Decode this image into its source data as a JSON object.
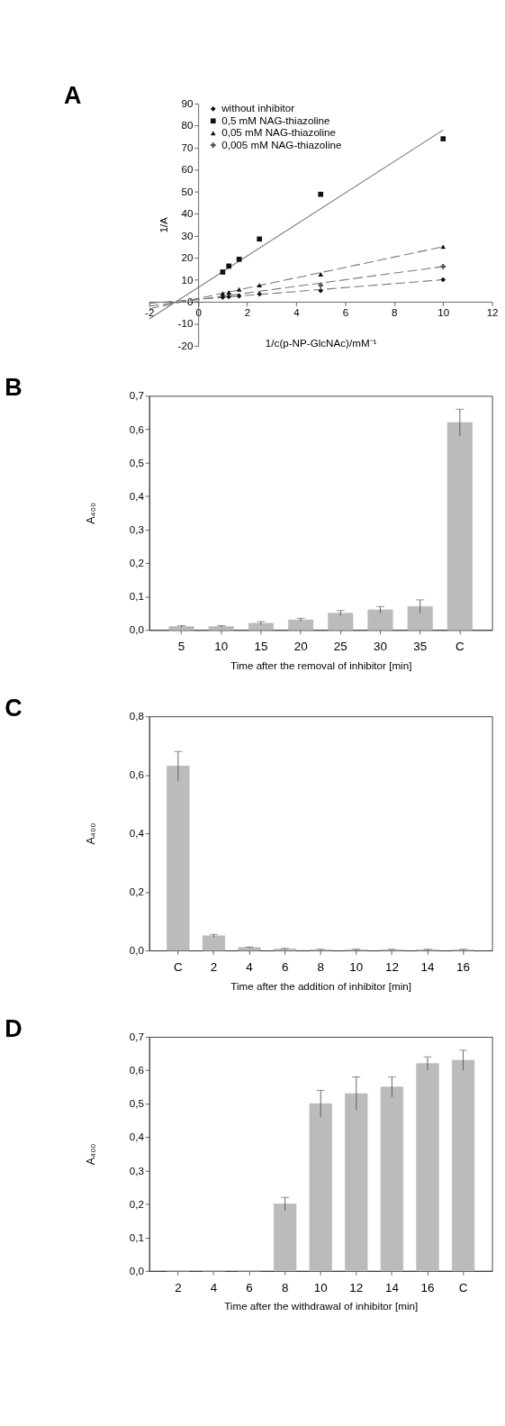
{
  "chart_data": [
    {
      "type": "scatter",
      "title": "A",
      "xlabel": "1/c(p-NP-GlcNAc)/mM⁻¹",
      "ylabel": "1/A",
      "xlim": [
        -2,
        12
      ],
      "xticks": [
        -2,
        0,
        2,
        4,
        6,
        8,
        10,
        12
      ],
      "ylim": [
        -20,
        90
      ],
      "yticks": [
        -20,
        -10,
        0,
        10,
        20,
        30,
        40,
        50,
        60,
        70,
        80,
        90
      ],
      "grid": false,
      "legend": "top left",
      "series": [
        {
          "name": "without inhibitor",
          "color": "#111111",
          "marker": "diamond",
          "x": [
            1,
            1.25,
            1.67,
            2.5,
            5,
            10
          ],
          "values": [
            2,
            2.3,
            2.6,
            3.5,
            5,
            10
          ]
        },
        {
          "name": "0,5 mM NAG-thiazoline",
          "color": "#111111",
          "marker": "square",
          "x": [
            1,
            1.25,
            1.67,
            2.5,
            5,
            10
          ],
          "values": [
            13.5,
            16.2,
            19.3,
            28.5,
            48.8,
            74
          ]
        },
        {
          "name": "0,05 mM NAG-thiazoline",
          "color": "#111111",
          "marker": "triangle",
          "x": [
            1,
            1.25,
            1.67,
            2.5,
            5,
            10
          ],
          "values": [
            3.8,
            4.3,
            5.6,
            7.5,
            12.5,
            25
          ]
        },
        {
          "name": "0,005 mM NAG-thiazoline",
          "color": "#555555",
          "marker": "cross",
          "x": [
            5,
            10
          ],
          "values": [
            7.5,
            16
          ]
        },
        {
          "type": "line",
          "color": "#777777",
          "line_style": "dashed",
          "x": [
            -2,
            10
          ],
          "values": [
            -0.7,
            10
          ]
        },
        {
          "type": "line",
          "color": "#777777",
          "line_style": "solid",
          "x": [
            -2,
            10
          ],
          "values": [
            -7.8,
            78
          ]
        },
        {
          "type": "line",
          "color": "#777777",
          "line_style": "dashed",
          "x": [
            -2,
            10
          ],
          "values": [
            -3.2,
            25
          ]
        },
        {
          "type": "line",
          "color": "#777777",
          "line_style": "dashed",
          "x": [
            -2,
            10
          ],
          "values": [
            -2,
            16
          ]
        }
      ]
    },
    {
      "type": "bar",
      "title": "B",
      "xlabel": "Time after the removal of inhibitor [min]",
      "ylabel": "A₄₀₀",
      "categories": [
        "5",
        "10",
        "15",
        "20",
        "25",
        "30",
        "35",
        "C"
      ],
      "values": [
        0.01,
        0.01,
        0.02,
        0.03,
        0.05,
        0.06,
        0.07,
        0.62
      ],
      "errors": [
        0.003,
        0.003,
        0.005,
        0.005,
        0.008,
        0.01,
        0.02,
        0.04
      ],
      "color": "#bbbbbb",
      "ylim": [
        0,
        0.7
      ],
      "yticks": [
        {
          "value": 0,
          "label": "0,0"
        },
        {
          "value": 0.1,
          "label": "0,1"
        },
        {
          "value": 0.2,
          "label": "0,2"
        },
        {
          "value": 0.3,
          "label": "0,3"
        },
        {
          "value": 0.4,
          "label": "0,4"
        },
        {
          "value": 0.5,
          "label": "0,5"
        },
        {
          "value": 0.6,
          "label": "0,6"
        },
        {
          "value": 0.7,
          "label": "0,7"
        }
      ],
      "grid": false
    },
    {
      "type": "bar",
      "title": "C",
      "xlabel": "Time after the addition of inhibitor [min]",
      "ylabel": "A₄₀₀",
      "categories": [
        "C",
        "2",
        "4",
        "6",
        "8",
        "10",
        "12",
        "14",
        "16"
      ],
      "values": [
        0.63,
        0.05,
        0.01,
        0.005,
        0.002,
        0.002,
        0.002,
        0.002,
        0.002
      ],
      "errors": [
        0.05,
        0.005,
        0.002,
        0.002,
        0.002,
        0.002,
        0.002,
        0.002,
        0.002
      ],
      "color": "#bbbbbb",
      "ylim": [
        0,
        0.8
      ],
      "yticks": [
        {
          "value": 0,
          "label": "0,0"
        },
        {
          "value": 0.2,
          "label": "0,2"
        },
        {
          "value": 0.4,
          "label": "0,4"
        },
        {
          "value": 0.6,
          "label": "0,6"
        },
        {
          "value": 0.8,
          "label": "0,8"
        }
      ],
      "grid": false
    },
    {
      "type": "bar",
      "title": "D",
      "xlabel": "Time after the withdrawal of inhibitor [min]",
      "ylabel": "A₄₀₀",
      "categories": [
        "2",
        "4",
        "6",
        "8",
        "10",
        "12",
        "14",
        "16",
        "C"
      ],
      "values": [
        0,
        0,
        0,
        0.2,
        0.5,
        0.53,
        0.55,
        0.62,
        0.63
      ],
      "errors": [
        null,
        null,
        null,
        0.02,
        0.04,
        0.05,
        0.03,
        0.02,
        0.03
      ],
      "color": "#bbbbbb",
      "ylim": [
        0,
        0.7
      ],
      "yticks": [
        {
          "value": 0,
          "label": "0,0"
        },
        {
          "value": 0.1,
          "label": "0,1"
        },
        {
          "value": 0.2,
          "label": "0,2"
        },
        {
          "value": 0.3,
          "label": "0,3"
        },
        {
          "value": 0.4,
          "label": "0,4"
        },
        {
          "value": 0.5,
          "label": "0,5"
        },
        {
          "value": 0.6,
          "label": "0,6"
        },
        {
          "value": 0.7,
          "label": "0,7"
        }
      ],
      "grid": false
    }
  ]
}
